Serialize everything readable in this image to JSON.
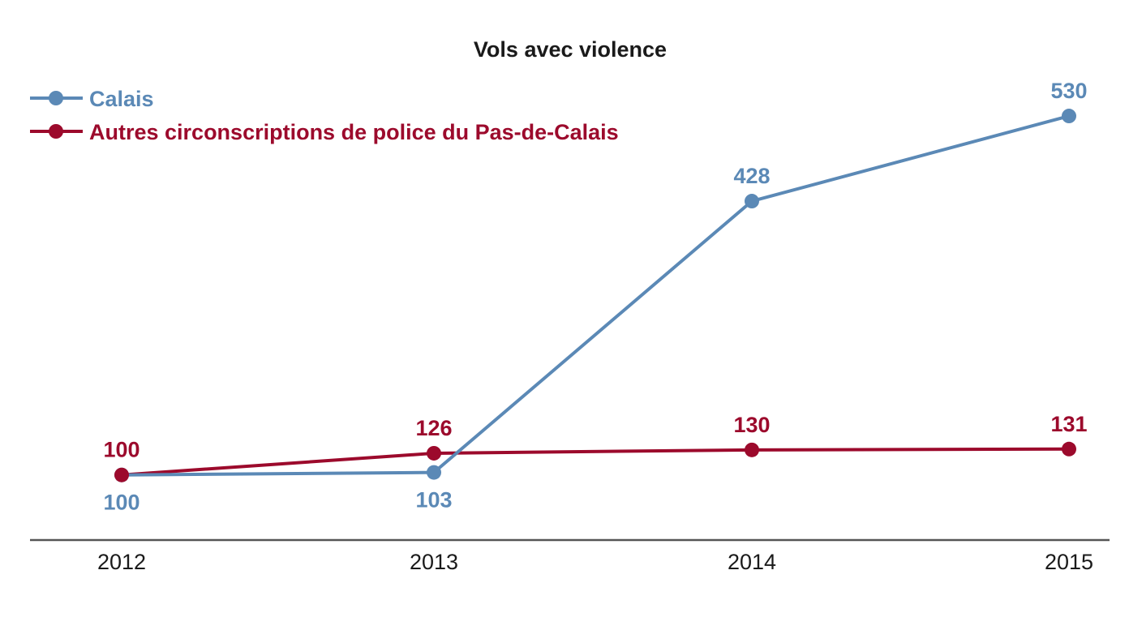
{
  "chart_data": {
    "type": "line",
    "title": "Vols avec violence",
    "xlabel": "",
    "ylabel": "",
    "categories": [
      "2012",
      "2013",
      "2014",
      "2015"
    ],
    "series": [
      {
        "name": "Calais",
        "color": "#5b89b6",
        "values": [
          100,
          103,
          428,
          530
        ],
        "label_positions": [
          "below",
          "below",
          "above",
          "above"
        ]
      },
      {
        "name": "Autres circonscriptions de police du Pas-de-Calais",
        "color": "#9c0a2c",
        "values": [
          100,
          126,
          130,
          131
        ],
        "label_positions": [
          "above",
          "above",
          "above",
          "above"
        ]
      }
    ],
    "ylim": [
      22,
      600
    ],
    "grid": false,
    "y_axis_visible": false,
    "legend": "top-left",
    "axis_color": "#555555"
  }
}
